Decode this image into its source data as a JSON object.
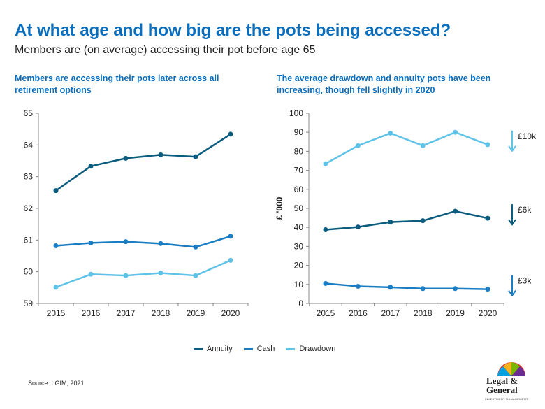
{
  "header": {
    "title": "At what age and how big are the pots being accessed?",
    "subtitle": "Members are (on average) accessing their pot before age 65"
  },
  "source": "Source: LGIM, 2021",
  "logo": {
    "line1": "Legal &",
    "line2": "General",
    "tagline": "INVESTMENT MANAGEMENT"
  },
  "legend": [
    {
      "name": "Annuity",
      "color": "#0b5c7e"
    },
    {
      "name": "Cash",
      "color": "#1a7dc4"
    },
    {
      "name": "Drawdown",
      "color": "#5fc3e8"
    }
  ],
  "chart_data": [
    {
      "type": "line",
      "title": "Members are accessing their pots later across all retirement options",
      "x": [
        2015,
        2016,
        2017,
        2018,
        2019,
        2020
      ],
      "ylim": [
        59,
        65
      ],
      "yticks": [
        59,
        60,
        61,
        62,
        63,
        64,
        65
      ],
      "ylabel": "",
      "grid": false,
      "series": [
        {
          "name": "Annuity",
          "color": "#0b5c7e",
          "values": [
            62.56,
            63.33,
            63.58,
            63.69,
            63.63,
            64.34
          ]
        },
        {
          "name": "Cash",
          "color": "#1a7dc4",
          "values": [
            60.82,
            60.91,
            60.95,
            60.89,
            60.78,
            61.12
          ]
        },
        {
          "name": "Drawdown",
          "color": "#5fc3e8",
          "values": [
            59.51,
            59.92,
            59.88,
            59.96,
            59.88,
            60.36
          ]
        }
      ]
    },
    {
      "type": "line",
      "title": "The average drawdown and annuity pots have been increasing, though fell slightly in 2020",
      "x": [
        2015,
        2016,
        2017,
        2018,
        2019,
        2020
      ],
      "ylim": [
        0,
        100
      ],
      "yticks": [
        0,
        10,
        20,
        30,
        40,
        50,
        60,
        70,
        80,
        90,
        100
      ],
      "ylabel": "£ '000",
      "grid": false,
      "series": [
        {
          "name": "Drawdown",
          "color": "#5fc3e8",
          "values": [
            73.5,
            83.0,
            89.5,
            83.0,
            90.0,
            83.5
          ]
        },
        {
          "name": "Annuity",
          "color": "#0b5c7e",
          "values": [
            38.8,
            40.2,
            42.8,
            43.5,
            48.5,
            44.8
          ]
        },
        {
          "name": "Cash",
          "color": "#1a7dc4",
          "values": [
            10.5,
            9.0,
            8.5,
            7.8,
            7.8,
            7.5
          ]
        }
      ],
      "annotations": [
        {
          "text": "£10k",
          "direction": "down",
          "series": "Drawdown",
          "color": "#5fc3e8"
        },
        {
          "text": "£6k",
          "direction": "down",
          "series": "Annuity",
          "color": "#0b5c7e"
        },
        {
          "text": "£3k",
          "direction": "down",
          "series": "Cash",
          "color": "#1a7dc4"
        }
      ]
    }
  ]
}
